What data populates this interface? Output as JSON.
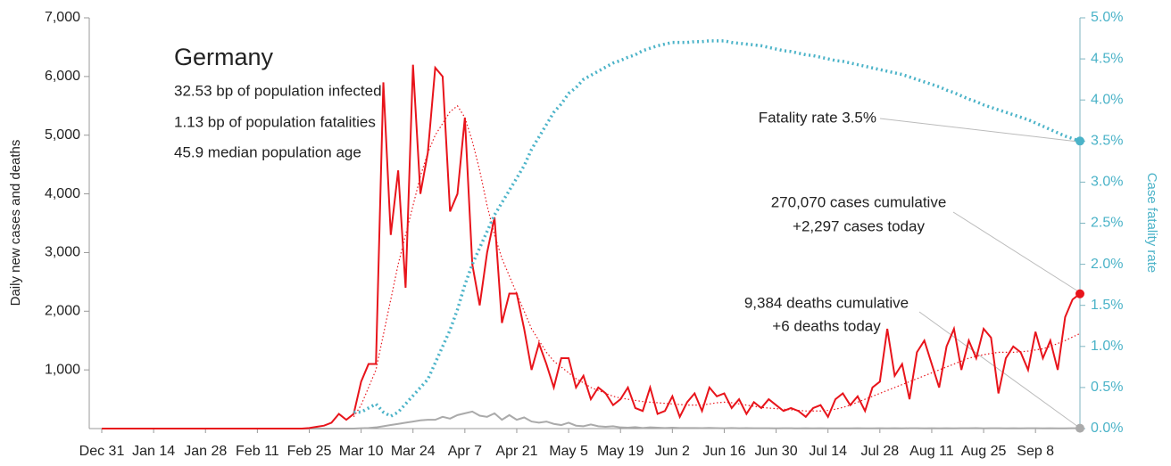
{
  "chart_data": {
    "type": "line",
    "y_label": "Daily new cases and deaths",
    "y2_label": "Case fatality rate",
    "annotations": [
      "Germany",
      "32.53 bp of population infected",
      "1.13 bp of population fatalities",
      "45.9 median population age",
      "Fatality rate 3.5%",
      "270,070 cases cumulative",
      "+2,297 cases today",
      "9,384 deaths cumulative",
      "+6 deaths today"
    ],
    "categories": [
      "Dec 31",
      null,
      null,
      null,
      null,
      null,
      null,
      "Jan 14",
      null,
      null,
      null,
      null,
      null,
      null,
      "Jan 28",
      null,
      null,
      null,
      null,
      null,
      null,
      "Feb 11",
      null,
      null,
      null,
      null,
      null,
      null,
      "Feb 25",
      null,
      null,
      null,
      null,
      null,
      null,
      "Mar 10",
      null,
      null,
      null,
      null,
      null,
      null,
      "Mar 24",
      null,
      null,
      null,
      null,
      null,
      null,
      "Apr 7",
      null,
      null,
      null,
      null,
      null,
      null,
      "Apr 21",
      null,
      null,
      null,
      null,
      null,
      null,
      "May 5",
      null,
      null,
      null,
      null,
      null,
      null,
      "May 19",
      null,
      null,
      null,
      null,
      null,
      null,
      "Jun 2",
      null,
      null,
      null,
      null,
      null,
      null,
      "Jun 16",
      null,
      null,
      null,
      null,
      null,
      null,
      "Jun 30",
      null,
      null,
      null,
      null,
      null,
      null,
      "Jul 14",
      null,
      null,
      null,
      null,
      null,
      null,
      "Jul 28",
      null,
      null,
      null,
      null,
      null,
      null,
      "Aug 11",
      null,
      null,
      null,
      null,
      null,
      null,
      "Aug 25",
      null,
      null,
      null,
      null,
      null,
      null,
      "Sep 8",
      null,
      null,
      null,
      null,
      null,
      null
    ],
    "ylim": [
      0,
      7000
    ],
    "yticks": [
      {
        "value": 1000,
        "label": "1,000"
      },
      {
        "value": 2000,
        "label": "2,000"
      },
      {
        "value": 3000,
        "label": "3,000"
      },
      {
        "value": 4000,
        "label": "4,000"
      },
      {
        "value": 5000,
        "label": "5,000"
      },
      {
        "value": 6000,
        "label": "6,000"
      },
      {
        "value": 7000,
        "label": "7,000"
      }
    ],
    "y2lim": [
      0,
      5
    ],
    "y2ticks": [
      {
        "value": 0,
        "label": "0.0%"
      },
      {
        "value": 0.5,
        "label": "0.5%"
      },
      {
        "value": 1,
        "label": "1.0%"
      },
      {
        "value": 1.5,
        "label": "1.5%"
      },
      {
        "value": 2,
        "label": "2.0%"
      },
      {
        "value": 2.5,
        "label": "2.5%"
      },
      {
        "value": 3,
        "label": "3.0%"
      },
      {
        "value": 3.5,
        "label": "3.5%"
      },
      {
        "value": 4,
        "label": "4.0%"
      },
      {
        "value": 4.5,
        "label": "4.5%"
      },
      {
        "value": 5,
        "label": "5.0%"
      }
    ],
    "series": [
      {
        "color": "#aaaaaa",
        "style": "solid",
        "end_marker": true,
        "values": [
          0,
          0,
          0,
          0,
          0,
          0,
          0,
          0,
          0,
          0,
          0,
          0,
          0,
          0,
          0,
          0,
          0,
          0,
          0,
          0,
          0,
          0,
          0,
          0,
          0,
          0,
          0,
          0,
          0,
          0,
          0,
          0,
          0,
          0,
          0,
          5,
          10,
          20,
          40,
          60,
          80,
          100,
          120,
          140,
          150,
          150,
          200,
          170,
          230,
          260,
          290,
          220,
          200,
          260,
          150,
          230,
          150,
          190,
          120,
          100,
          120,
          80,
          60,
          100,
          50,
          40,
          70,
          40,
          30,
          40,
          20,
          15,
          25,
          10,
          20,
          15,
          10,
          15,
          10,
          10,
          10,
          8,
          12,
          8,
          6,
          10,
          5,
          8,
          6,
          5,
          5,
          4,
          6,
          5,
          4,
          6,
          3,
          5,
          4,
          3,
          3,
          4,
          5,
          3,
          4,
          5,
          3,
          6,
          4,
          5,
          5,
          4,
          6,
          3,
          5,
          4,
          6,
          5,
          7,
          4,
          5,
          6,
          4,
          5,
          3,
          6,
          5,
          4,
          5,
          3,
          4,
          5,
          6
        ]
      },
      {
        "color": "#e8141b",
        "style": "dotted",
        "values": [
          null,
          null,
          null,
          null,
          null,
          null,
          null,
          null,
          null,
          null,
          null,
          null,
          null,
          null,
          null,
          null,
          null,
          null,
          null,
          null,
          null,
          null,
          null,
          null,
          null,
          null,
          null,
          null,
          null,
          null,
          null,
          null,
          null,
          null,
          200,
          400,
          700,
          1000,
          1600,
          2200,
          2800,
          3300,
          3800,
          4300,
          4700,
          5000,
          5200,
          5400,
          5500,
          5300,
          4900,
          4400,
          3800,
          3300,
          2900,
          2600,
          2300,
          2000,
          1700,
          1500,
          1300,
          1150,
          1050,
          950,
          850,
          780,
          700,
          650,
          600,
          550,
          520,
          500,
          480,
          460,
          450,
          440,
          430,
          420,
          410,
          400,
          400,
          400,
          420,
          440,
          450,
          440,
          420,
          400,
          380,
          360,
          350,
          340,
          330,
          320,
          310,
          300,
          300,
          300,
          310,
          330,
          360,
          400,
          450,
          500,
          550,
          600,
          650,
          700,
          750,
          800,
          850,
          900,
          950,
          1000,
          1050,
          1100,
          1150,
          1200,
          1230,
          1260,
          1280,
          1300,
          1300,
          1300,
          1310,
          1320,
          1340,
          1360,
          1400,
          1450,
          1500,
          1560,
          1620
        ]
      },
      {
        "color": "#e8141b",
        "style": "solid",
        "end_marker": true,
        "values": [
          0,
          0,
          0,
          0,
          0,
          0,
          0,
          0,
          0,
          0,
          0,
          0,
          0,
          0,
          0,
          0,
          0,
          0,
          0,
          0,
          0,
          0,
          0,
          0,
          0,
          0,
          0,
          0,
          10,
          30,
          50,
          100,
          250,
          150,
          250,
          800,
          1100,
          1100,
          5900,
          3300,
          4400,
          2400,
          6200,
          4000,
          4700,
          6150,
          6000,
          3700,
          4000,
          5300,
          2800,
          2100,
          3000,
          3600,
          1800,
          2300,
          2300,
          1700,
          1000,
          1450,
          1100,
          700,
          1200,
          1200,
          700,
          900,
          500,
          700,
          600,
          400,
          500,
          700,
          350,
          300,
          700,
          250,
          300,
          550,
          200,
          450,
          600,
          300,
          700,
          550,
          600,
          350,
          500,
          250,
          450,
          350,
          500,
          400,
          300,
          350,
          300,
          200,
          350,
          400,
          200,
          500,
          600,
          400,
          550,
          300,
          700,
          800,
          1700,
          900,
          1100,
          500,
          1300,
          1500,
          1100,
          700,
          1400,
          1700,
          1000,
          1500,
          1200,
          1700,
          1550,
          600,
          1200,
          1400,
          1300,
          1000,
          1650,
          1200,
          1500,
          1000,
          1900,
          2200,
          2297
        ]
      },
      {
        "color": "#4bb3c8",
        "style": "dotted-thick",
        "axis": "y2",
        "end_marker": true,
        "values": [
          null,
          null,
          null,
          null,
          null,
          null,
          null,
          null,
          null,
          null,
          null,
          null,
          null,
          null,
          null,
          null,
          null,
          null,
          null,
          null,
          null,
          null,
          null,
          null,
          null,
          null,
          null,
          null,
          null,
          null,
          null,
          null,
          null,
          null,
          0.2,
          0.2,
          0.25,
          0.3,
          0.2,
          0.15,
          0.2,
          0.3,
          0.4,
          0.5,
          0.6,
          0.8,
          1.0,
          1.2,
          1.45,
          1.75,
          2.0,
          2.2,
          2.4,
          2.6,
          2.75,
          2.9,
          3.05,
          3.2,
          3.4,
          3.55,
          3.7,
          3.85,
          3.95,
          4.08,
          4.15,
          4.25,
          4.3,
          4.35,
          4.4,
          4.45,
          4.48,
          4.52,
          4.55,
          4.6,
          4.63,
          4.66,
          4.68,
          4.7,
          4.7,
          4.7,
          4.71,
          4.71,
          4.72,
          4.72,
          4.72,
          4.7,
          4.69,
          4.68,
          4.67,
          4.66,
          4.64,
          4.62,
          4.6,
          4.59,
          4.57,
          4.55,
          4.54,
          4.52,
          4.5,
          4.48,
          4.47,
          4.45,
          4.43,
          4.41,
          4.39,
          4.37,
          4.35,
          4.33,
          4.31,
          4.28,
          4.25,
          4.22,
          4.19,
          4.16,
          4.12,
          4.09,
          4.05,
          4.01,
          3.98,
          3.94,
          3.91,
          3.88,
          3.85,
          3.82,
          3.79,
          3.76,
          3.72,
          3.68,
          3.64,
          3.6,
          3.56,
          3.53,
          3.5
        ]
      }
    ]
  }
}
